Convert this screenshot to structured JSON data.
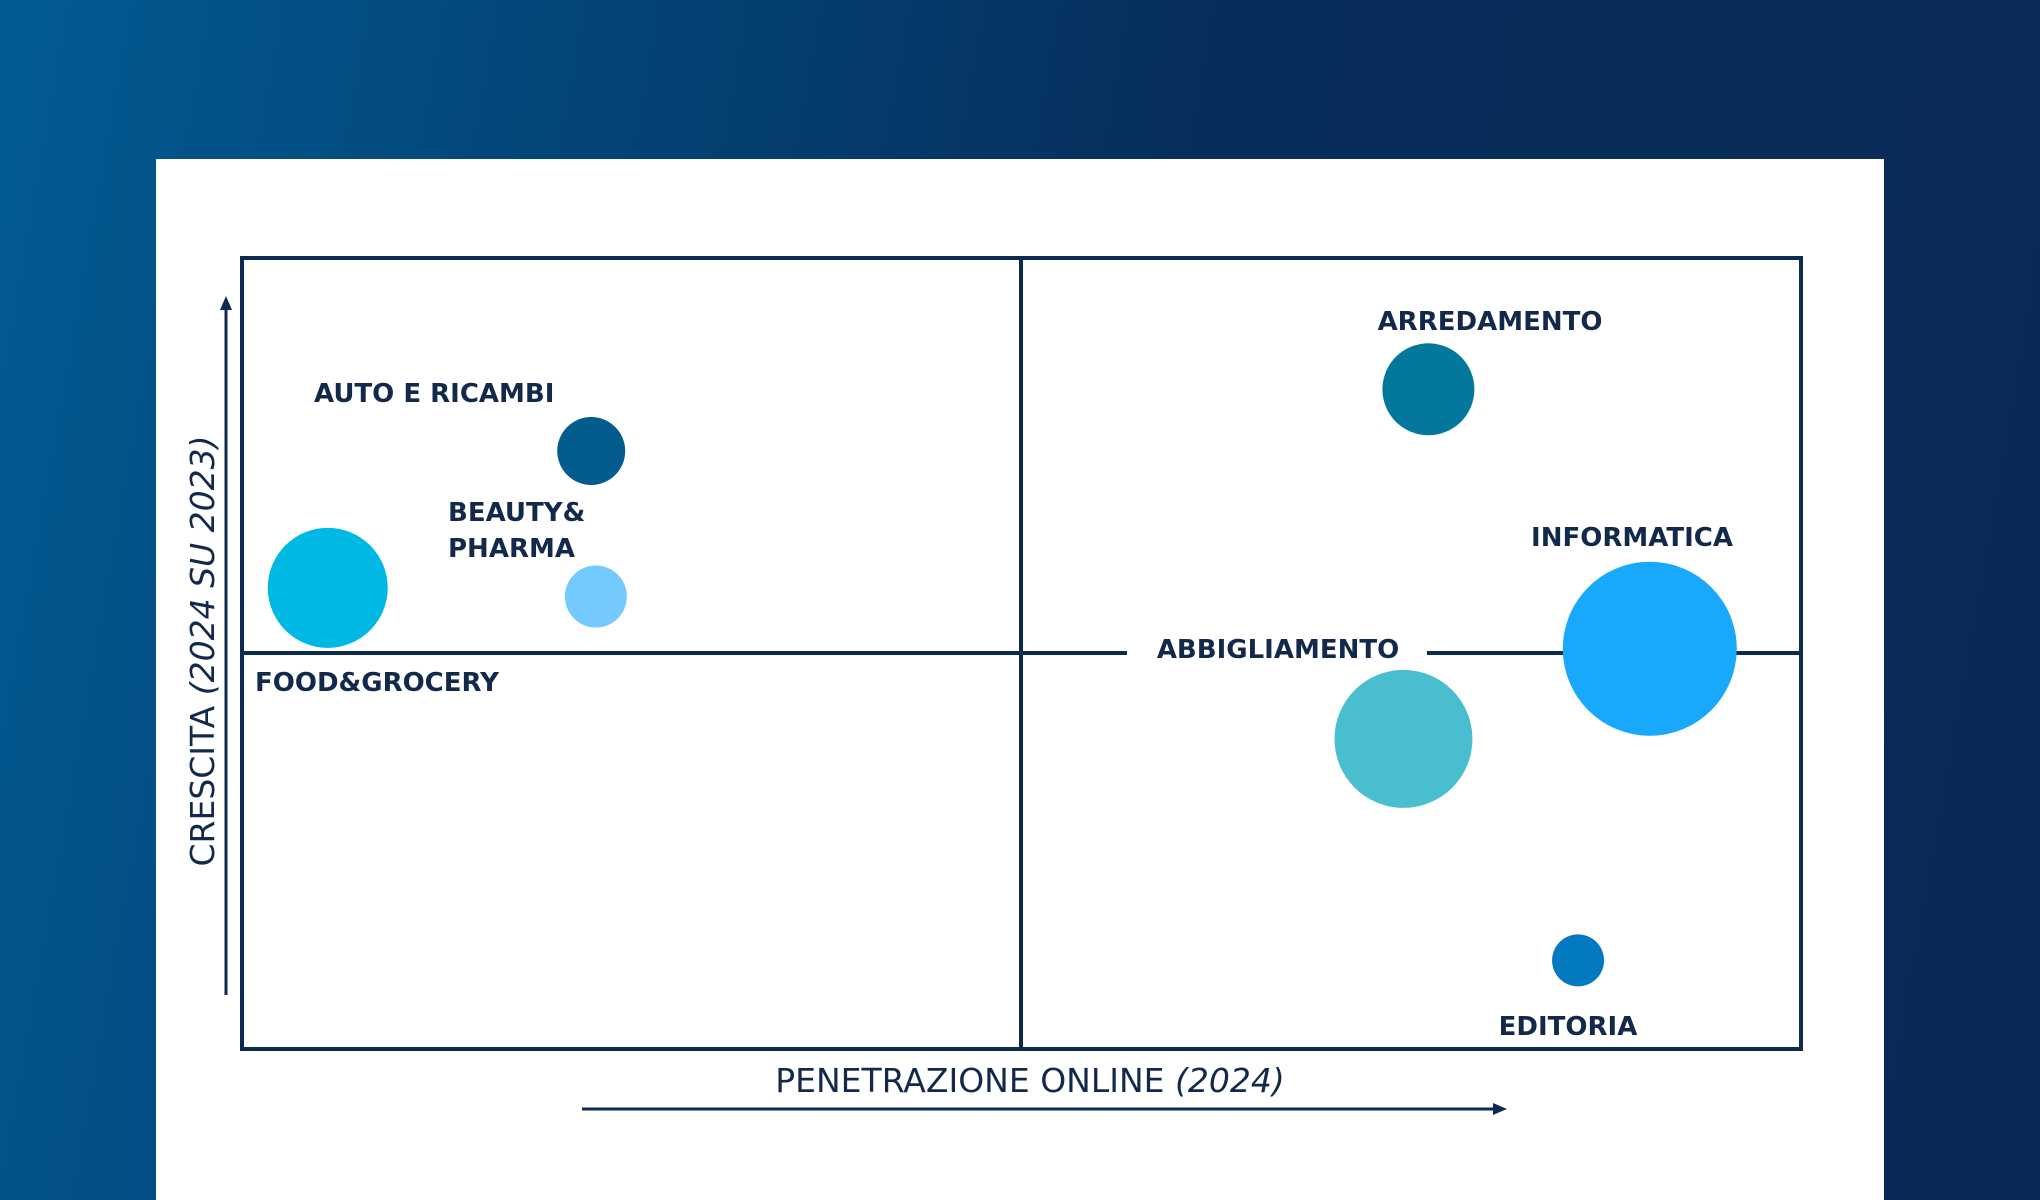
{
  "chart_data": {
    "type": "bubble",
    "xlabel": "PENETRAZIONE ONLINE",
    "xlabel_suffix": "(2024)",
    "ylabel": "CRESCITA",
    "ylabel_suffix": "(2024 SU 2023)",
    "xlim": [
      0,
      100
    ],
    "ylim": [
      0,
      100
    ],
    "quadrants": true,
    "grid": false,
    "points": [
      {
        "label": "FOOD&GROCERY",
        "x": 5.5,
        "y": 58.3,
        "size": 60,
        "color": "#00b8e4"
      },
      {
        "label": "AUTO E RICAMBI",
        "x": 22.4,
        "y": 75.6,
        "size": 34,
        "color": "#045b8d"
      },
      {
        "label_lines": [
          "BEAUTY&",
          "PHARMA"
        ],
        "x": 22.7,
        "y": 57.2,
        "size": 31,
        "color": "#74caff"
      },
      {
        "label": "ARREDAMENTO",
        "x": 76.1,
        "y": 83.4,
        "size": 46,
        "color": "#04789c"
      },
      {
        "label": "INFORMATICA",
        "x": 90.3,
        "y": 50.6,
        "size": 87,
        "color": "#18a9fc"
      },
      {
        "label": "ABBIGLIAMENTO",
        "x": 74.5,
        "y": 39.2,
        "size": 69,
        "color": "#49becf"
      },
      {
        "label": "EDITORIA",
        "x": 85.7,
        "y": 11.2,
        "size": 26,
        "color": "#037ac0"
      }
    ]
  },
  "colors": {
    "line": "#0d2a52",
    "background_start": "#035b93",
    "background_end": "#0a2a55"
  }
}
